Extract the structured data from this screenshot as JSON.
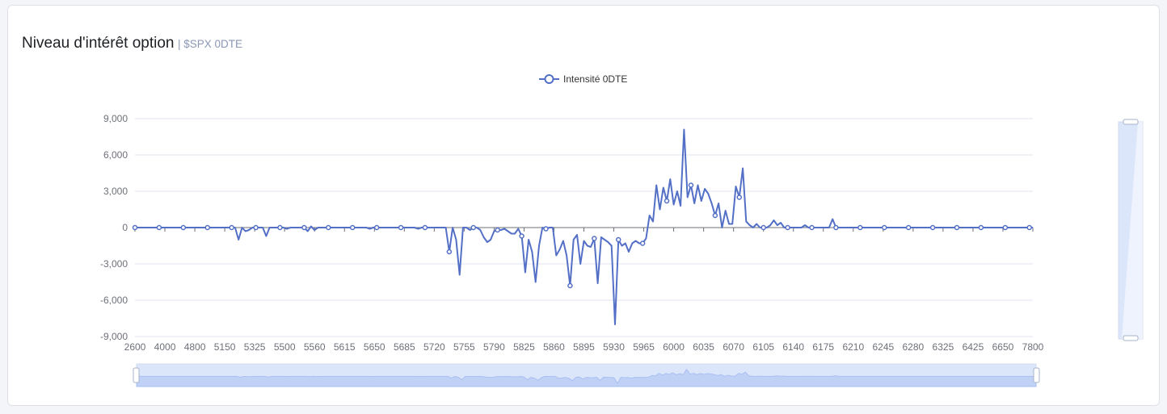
{
  "header": {
    "title": "Niveau d'intérêt option",
    "subtitle": "| $SPX 0DTE"
  },
  "colors": {
    "series": "#5470c6",
    "grid": "#e0e6f1",
    "axis_text": "#6e7079",
    "zoom_fill": "#dce6fb",
    "zoom_shade": "#a9bff2"
  },
  "chart_data": {
    "type": "line",
    "title": "",
    "xlabel": "",
    "ylabel": "",
    "ylim": [
      -9000,
      9000
    ],
    "y_ticks": [
      "9,000",
      "6,000",
      "3,000",
      "0",
      "-3,000",
      "-6,000",
      "-9,000"
    ],
    "x_tick_labels": [
      "2600",
      "4000",
      "4800",
      "5150",
      "5325",
      "5500",
      "5560",
      "5615",
      "5650",
      "5685",
      "5720",
      "5755",
      "5790",
      "5825",
      "5860",
      "5895",
      "5930",
      "5965",
      "6000",
      "6035",
      "6070",
      "6105",
      "6140",
      "6175",
      "6210",
      "6245",
      "6280",
      "6325",
      "6425",
      "6650",
      "7800"
    ],
    "legend": {
      "position": "top-center"
    },
    "grid": true,
    "x_zoom_slider": true,
    "y_zoom_slider": true,
    "series": [
      {
        "name": "Intensité 0DTE",
        "values": [
          0,
          0,
          0,
          0,
          0,
          0,
          0,
          0,
          0,
          0,
          0,
          0,
          0,
          0,
          0,
          0,
          0,
          0,
          0,
          0,
          0,
          0,
          0,
          0,
          0,
          0,
          0,
          0,
          0,
          0,
          -1000,
          0,
          -300,
          -200,
          0,
          0,
          0,
          0,
          -700,
          0,
          0,
          0,
          0,
          0,
          -100,
          0,
          0,
          0,
          0,
          0,
          -300,
          100,
          -200,
          0,
          0,
          0,
          0,
          0,
          0,
          0,
          0,
          0,
          0,
          0,
          0,
          0,
          0,
          0,
          -100,
          0,
          0,
          0,
          0,
          0,
          0,
          0,
          0,
          0,
          0,
          0,
          0,
          0,
          -100,
          0,
          0,
          0,
          0,
          0,
          0,
          0,
          0,
          -2000,
          0,
          -1000,
          -3900,
          0,
          0,
          -200,
          0,
          0,
          -200,
          -800,
          -1200,
          -1000,
          -300,
          -200,
          -200,
          -100,
          -300,
          -500,
          -500,
          -100,
          -700,
          -3700,
          -1000,
          -2000,
          -4500,
          -1500,
          0,
          -100,
          0,
          0,
          -2300,
          -1800,
          -1100,
          -2300,
          -4800,
          -1000,
          -600,
          -3000,
          -1100,
          -1500,
          -1600,
          -900,
          -4600,
          -800,
          -1000,
          -1200,
          -1500,
          -8000,
          -1000,
          -1500,
          -1300,
          -2000,
          -1300,
          -1100,
          -1300,
          -1300,
          -900,
          1000,
          500,
          3500,
          1500,
          3300,
          2200,
          4000,
          1900,
          3000,
          1800,
          8100,
          2500,
          3500,
          2000,
          3500,
          2200,
          3200,
          2800,
          2000,
          1000,
          2000,
          0,
          1400,
          300,
          300,
          3400,
          2500,
          4900,
          500,
          200,
          0,
          300,
          0,
          0,
          0,
          200,
          600,
          200,
          400,
          0,
          0,
          0,
          0,
          0,
          0,
          200,
          0,
          0,
          0,
          0,
          0,
          0,
          0,
          700,
          0,
          0,
          0,
          0,
          0,
          0,
          0,
          0,
          0,
          0,
          0,
          0,
          0,
          0,
          0,
          0,
          0,
          0,
          0,
          0,
          0,
          0,
          0,
          0,
          0,
          0,
          0,
          0,
          0,
          0,
          0,
          0,
          0,
          0,
          0,
          0,
          0,
          0,
          0,
          0,
          0,
          0,
          0,
          0,
          0,
          0,
          0,
          0,
          0,
          0,
          0,
          0,
          0,
          0,
          0,
          0,
          0,
          0
        ]
      }
    ]
  }
}
